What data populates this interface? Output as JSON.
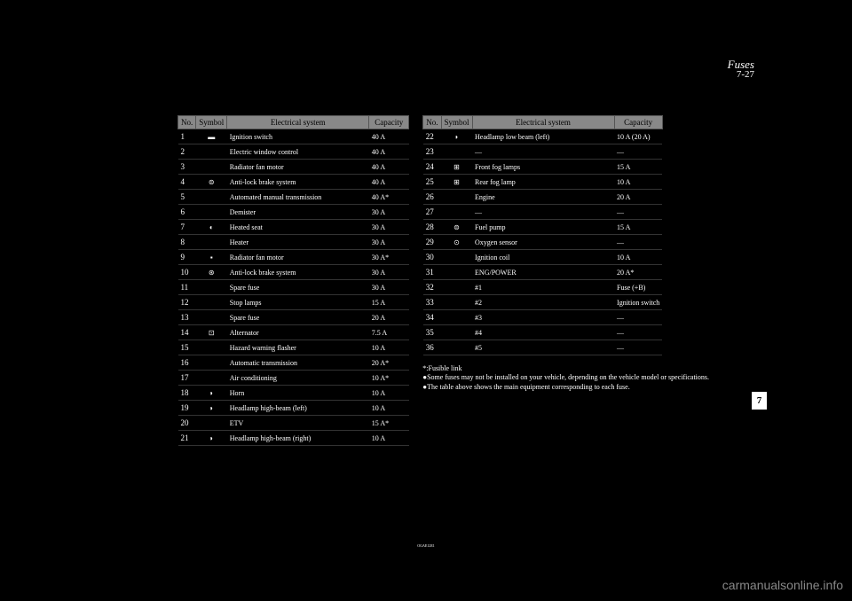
{
  "page_title": "Fuses",
  "page_num_top": "7-27",
  "chapter_tab": "7",
  "headers": [
    "No.",
    "Symbol",
    "Electrical system",
    "Capacity"
  ],
  "left_rows": [
    {
      "no": "1",
      "sym": "▬",
      "sys": "Ignition switch",
      "cap": "40 A"
    },
    {
      "no": "2",
      "sym": "",
      "sys": "Electric window control",
      "cap": "40 A"
    },
    {
      "no": "3",
      "sym": "",
      "sys": "Radiator fan motor",
      "cap": "40 A"
    },
    {
      "no": "4",
      "sym": "⊜",
      "sys": "Anti-lock brake system",
      "cap": "40 A"
    },
    {
      "no": "5",
      "sym": "",
      "sys": "Automated manual transmission",
      "cap": "40 A*"
    },
    {
      "no": "6",
      "sym": "",
      "sys": "Demister",
      "cap": "30 A"
    },
    {
      "no": "7",
      "sym": "◐",
      "sys": "Heated seat",
      "cap": "30 A"
    },
    {
      "no": "8",
      "sym": "",
      "sys": "Heater",
      "cap": "30 A"
    },
    {
      "no": "9",
      "sym": "▪",
      "sys": "Radiator fan motor",
      "cap": "30 A*"
    },
    {
      "no": "10",
      "sym": "⊛",
      "sys": "Anti-lock brake system",
      "cap": "30 A"
    },
    {
      "no": "11",
      "sym": "",
      "sys": "Spare fuse",
      "cap": "30 A"
    },
    {
      "no": "12",
      "sym": "",
      "sys": "Stop lamps",
      "cap": "15 A"
    },
    {
      "no": "13",
      "sym": "",
      "sys": "Spare fuse",
      "cap": "20 A"
    },
    {
      "no": "14",
      "sym": "⊡",
      "sys": "Alternator",
      "cap": "7.5 A"
    },
    {
      "no": "15",
      "sym": "",
      "sys": "Hazard warning flasher",
      "cap": "10 A"
    },
    {
      "no": "16",
      "sym": "",
      "sys": "Automatic transmission",
      "cap": "20 A*"
    },
    {
      "no": "17",
      "sym": "",
      "sys": "Air conditioning",
      "cap": "10 A*"
    },
    {
      "no": "18",
      "sym": "◗",
      "sys": "Horn",
      "cap": "10 A"
    },
    {
      "no": "19",
      "sym": "◗",
      "sys": "Headlamp high-beam (left)",
      "cap": "10 A"
    },
    {
      "no": "20",
      "sym": "",
      "sys": "ETV",
      "cap": "15 A*"
    },
    {
      "no": "21",
      "sym": "◗",
      "sys": "Headlamp high-beam (right)",
      "cap": "10 A"
    }
  ],
  "right_rows": [
    {
      "no": "22",
      "sym": "◗",
      "sys": "Headlamp low beam (left)",
      "cap": "10 A (20 A)"
    },
    {
      "no": "23",
      "sym": "",
      "sys": "—",
      "cap": "—"
    },
    {
      "no": "24",
      "sym": "⊞",
      "sys": "Front fog lamps",
      "cap": "15 A"
    },
    {
      "no": "25",
      "sym": "⊞",
      "sys": "Rear fog lamp",
      "cap": "10 A"
    },
    {
      "no": "26",
      "sym": "",
      "sys": "Engine",
      "cap": "20 A"
    },
    {
      "no": "27",
      "sym": "",
      "sys": "—",
      "cap": "—"
    },
    {
      "no": "28",
      "sym": "⊜",
      "sys": "Fuel pump",
      "cap": "15 A"
    },
    {
      "no": "29",
      "sym": "⊙",
      "sys": "Oxygen sensor",
      "cap": "—"
    },
    {
      "no": "30",
      "sym": "",
      "sys": "Ignition coil",
      "cap": "10 A"
    },
    {
      "no": "31",
      "sym": "",
      "sys": "ENG/POWER",
      "cap": "20 A*"
    },
    {
      "no": "32",
      "sym": "",
      "sys": "#1",
      "cap": "Fuse (+B)"
    },
    {
      "no": "33",
      "sym": "",
      "sys": "#2",
      "cap": "Ignition switch"
    },
    {
      "no": "34",
      "sym": "",
      "sys": "#3",
      "cap": "—"
    },
    {
      "no": "35",
      "sym": "",
      "sys": "#4",
      "cap": "—"
    },
    {
      "no": "36",
      "sym": "",
      "sys": "#5",
      "cap": "—"
    }
  ],
  "note_lines": [
    "*:Fusible link",
    "●Some fuses may not be installed on your vehicle, depending on the vehicle model or specifications.",
    "●The table above shows the main equipment corresponding to each fuse."
  ],
  "watermark": "carmanualsonline.info",
  "footer_center": "OGAE12E1"
}
